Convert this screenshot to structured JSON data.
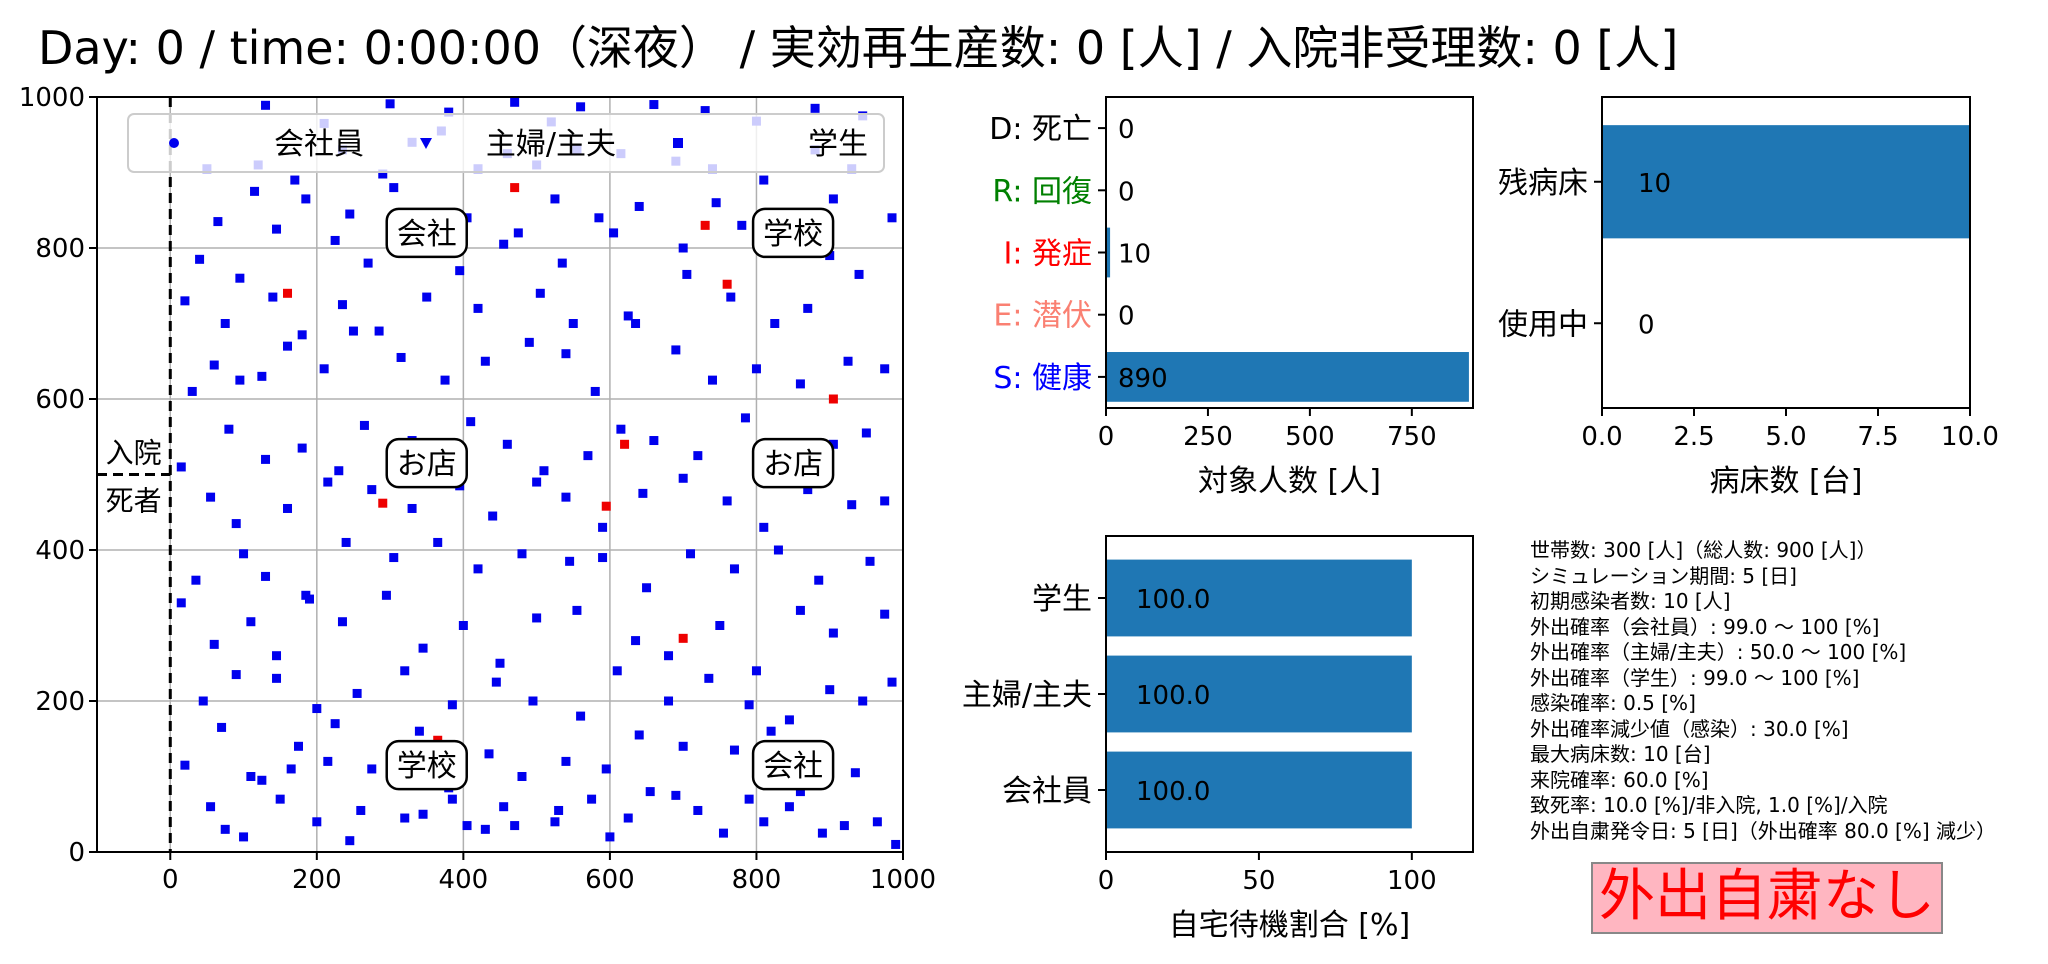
{
  "header": {
    "title": "Day: 0 / time: 0:00:00（深夜） / 実効再生産数: 0 [人] / 入院非受理数: 0 [人]"
  },
  "colors": {
    "worker": "#0000ee",
    "infected": "#ee0000",
    "bar": "#1f77b4",
    "status_bg": "#ffb6c1",
    "status_text": "#ff0000"
  },
  "map": {
    "legend": [
      {
        "label": "会社員",
        "marker": "circle"
      },
      {
        "label": "主婦/主夫",
        "marker": "triangle-down"
      },
      {
        "label": "学生",
        "marker": "square"
      }
    ],
    "places": [
      {
        "label": "会社",
        "x": 350,
        "y": 820
      },
      {
        "label": "学校",
        "x": 850,
        "y": 820
      },
      {
        "label": "お店",
        "x": 350,
        "y": 515
      },
      {
        "label": "お店",
        "x": 850,
        "y": 515
      },
      {
        "label": "学校",
        "x": 350,
        "y": 115
      },
      {
        "label": "会社",
        "x": 850,
        "y": 115
      }
    ],
    "hospital_label": "入院",
    "dead_label": "死者",
    "xlim": [
      -100,
      1000
    ],
    "ylim": [
      0,
      1000
    ],
    "xticks": [
      "0",
      "200",
      "400",
      "600",
      "800",
      "1000"
    ],
    "yticks": [
      "0",
      "200",
      "400",
      "600",
      "800",
      "1000"
    ],
    "grid": true,
    "legend_position": "top"
  },
  "chart_data": [
    {
      "type": "scatter",
      "xlim": [
        -100,
        1000
      ],
      "ylim": [
        0,
        1000
      ],
      "grid": true,
      "series": [
        {
          "name": "会社員",
          "marker": "circle",
          "color": "#0000ee",
          "points": []
        },
        {
          "name": "主婦/主夫",
          "marker": "triangle-down",
          "color": "#0000ee",
          "points": []
        },
        {
          "name": "学生",
          "marker": "square",
          "color": "#0000ee",
          "points": []
        }
      ],
      "susceptible_points": [
        [
          130,
          989
        ],
        [
          210,
          965
        ],
        [
          300,
          991
        ],
        [
          380,
          980
        ],
        [
          470,
          993
        ],
        [
          520,
          967
        ],
        [
          560,
          987
        ],
        [
          660,
          990
        ],
        [
          730,
          982
        ],
        [
          800,
          968
        ],
        [
          880,
          985
        ],
        [
          945,
          975
        ],
        [
          50,
          905
        ],
        [
          120,
          910
        ],
        [
          170,
          890
        ],
        [
          235,
          930
        ],
        [
          290,
          898
        ],
        [
          330,
          940
        ],
        [
          370,
          955
        ],
        [
          420,
          905
        ],
        [
          460,
          925
        ],
        [
          500,
          910
        ],
        [
          555,
          930
        ],
        [
          615,
          925
        ],
        [
          690,
          915
        ],
        [
          740,
          905
        ],
        [
          810,
          890
        ],
        [
          880,
          930
        ],
        [
          930,
          905
        ],
        [
          65,
          835
        ],
        [
          115,
          875
        ],
        [
          185,
          865
        ],
        [
          245,
          845
        ],
        [
          305,
          880
        ],
        [
          405,
          840
        ],
        [
          475,
          820
        ],
        [
          525,
          865
        ],
        [
          585,
          840
        ],
        [
          640,
          855
        ],
        [
          745,
          860
        ],
        [
          820,
          845
        ],
        [
          905,
          865
        ],
        [
          985,
          840
        ],
        [
          40,
          785
        ],
        [
          95,
          760
        ],
        [
          145,
          825
        ],
        [
          225,
          810
        ],
        [
          270,
          780
        ],
        [
          335,
          795
        ],
        [
          395,
          770
        ],
        [
          455,
          805
        ],
        [
          535,
          780
        ],
        [
          605,
          820
        ],
        [
          700,
          800
        ],
        [
          780,
          830
        ],
        [
          900,
          790
        ],
        [
          20,
          730
        ],
        [
          75,
          700
        ],
        [
          140,
          735
        ],
        [
          180,
          685
        ],
        [
          235,
          725
        ],
        [
          285,
          690
        ],
        [
          350,
          735
        ],
        [
          420,
          720
        ],
        [
          505,
          740
        ],
        [
          550,
          700
        ],
        [
          625,
          710
        ],
        [
          705,
          765
        ],
        [
          765,
          735
        ],
        [
          825,
          700
        ],
        [
          870,
          720
        ],
        [
          940,
          765
        ],
        [
          30,
          610
        ],
        [
          60,
          645
        ],
        [
          95,
          625
        ],
        [
          125,
          630
        ],
        [
          160,
          670
        ],
        [
          210,
          640
        ],
        [
          250,
          690
        ],
        [
          315,
          655
        ],
        [
          375,
          625
        ],
        [
          430,
          650
        ],
        [
          490,
          675
        ],
        [
          540,
          660
        ],
        [
          580,
          610
        ],
        [
          635,
          700
        ],
        [
          690,
          665
        ],
        [
          740,
          625
        ],
        [
          800,
          640
        ],
        [
          860,
          620
        ],
        [
          925,
          650
        ],
        [
          975,
          640
        ],
        [
          15,
          510
        ],
        [
          80,
          560
        ],
        [
          130,
          520
        ],
        [
          180,
          535
        ],
        [
          230,
          505
        ],
        [
          265,
          565
        ],
        [
          330,
          545
        ],
        [
          410,
          570
        ],
        [
          460,
          540
        ],
        [
          510,
          505
        ],
        [
          570,
          525
        ],
        [
          615,
          560
        ],
        [
          660,
          545
        ],
        [
          720,
          525
        ],
        [
          785,
          575
        ],
        [
          840,
          515
        ],
        [
          905,
          540
        ],
        [
          950,
          555
        ],
        [
          55,
          470
        ],
        [
          90,
          435
        ],
        [
          160,
          455
        ],
        [
          215,
          490
        ],
        [
          275,
          480
        ],
        [
          330,
          455
        ],
        [
          395,
          485
        ],
        [
          440,
          445
        ],
        [
          500,
          490
        ],
        [
          540,
          470
        ],
        [
          590,
          430
        ],
        [
          645,
          475
        ],
        [
          700,
          495
        ],
        [
          760,
          465
        ],
        [
          810,
          430
        ],
        [
          870,
          480
        ],
        [
          930,
          460
        ],
        [
          975,
          465
        ],
        [
          35,
          360
        ],
        [
          100,
          395
        ],
        [
          130,
          365
        ],
        [
          185,
          340
        ],
        [
          240,
          410
        ],
        [
          305,
          390
        ],
        [
          365,
          410
        ],
        [
          420,
          375
        ],
        [
          480,
          395
        ],
        [
          545,
          385
        ],
        [
          590,
          390
        ],
        [
          650,
          350
        ],
        [
          710,
          395
        ],
        [
          770,
          375
        ],
        [
          830,
          400
        ],
        [
          885,
          360
        ],
        [
          955,
          385
        ],
        [
          15,
          330
        ],
        [
          60,
          275
        ],
        [
          110,
          305
        ],
        [
          145,
          260
        ],
        [
          190,
          335
        ],
        [
          235,
          305
        ],
        [
          295,
          340
        ],
        [
          345,
          270
        ],
        [
          400,
          300
        ],
        [
          450,
          250
        ],
        [
          500,
          310
        ],
        [
          555,
          320
        ],
        [
          635,
          280
        ],
        [
          680,
          260
        ],
        [
          750,
          300
        ],
        [
          800,
          240
        ],
        [
          860,
          320
        ],
        [
          905,
          290
        ],
        [
          975,
          315
        ],
        [
          45,
          200
        ],
        [
          90,
          235
        ],
        [
          145,
          230
        ],
        [
          200,
          190
        ],
        [
          255,
          210
        ],
        [
          320,
          240
        ],
        [
          385,
          195
        ],
        [
          445,
          225
        ],
        [
          495,
          200
        ],
        [
          560,
          180
        ],
        [
          610,
          240
        ],
        [
          680,
          200
        ],
        [
          735,
          230
        ],
        [
          790,
          195
        ],
        [
          845,
          175
        ],
        [
          900,
          215
        ],
        [
          945,
          200
        ],
        [
          985,
          225
        ],
        [
          20,
          115
        ],
        [
          70,
          165
        ],
        [
          110,
          100
        ],
        [
          175,
          140
        ],
        [
          225,
          170
        ],
        [
          275,
          110
        ],
        [
          340,
          160
        ],
        [
          380,
          85
        ],
        [
          435,
          130
        ],
        [
          480,
          100
        ],
        [
          540,
          120
        ],
        [
          595,
          110
        ],
        [
          640,
          155
        ],
        [
          700,
          140
        ],
        [
          770,
          135
        ],
        [
          820,
          160
        ],
        [
          875,
          125
        ],
        [
          935,
          105
        ],
        [
          55,
          60
        ],
        [
          100,
          20
        ],
        [
          150,
          70
        ],
        [
          200,
          40
        ],
        [
          260,
          55
        ],
        [
          320,
          45
        ],
        [
          385,
          70
        ],
        [
          430,
          30
        ],
        [
          470,
          35
        ],
        [
          530,
          55
        ],
        [
          600,
          20
        ],
        [
          655,
          80
        ],
        [
          720,
          55
        ],
        [
          790,
          70
        ],
        [
          845,
          60
        ],
        [
          890,
          25
        ],
        [
          965,
          40
        ],
        [
          990,
          10
        ],
        [
          75,
          30
        ],
        [
          125,
          95
        ],
        [
          165,
          110
        ],
        [
          215,
          120
        ],
        [
          245,
          15
        ],
        [
          345,
          50
        ],
        [
          405,
          35
        ],
        [
          455,
          60
        ],
        [
          525,
          40
        ],
        [
          575,
          70
        ],
        [
          625,
          45
        ],
        [
          690,
          75
        ],
        [
          755,
          25
        ],
        [
          810,
          40
        ],
        [
          860,
          80
        ],
        [
          920,
          35
        ]
      ],
      "infected_points": [
        [
          730,
          830
        ],
        [
          760,
          752
        ],
        [
          290,
          462
        ],
        [
          595,
          458
        ],
        [
          700,
          283
        ],
        [
          365,
          148
        ],
        [
          620,
          540
        ],
        [
          470,
          880
        ],
        [
          160,
          740
        ],
        [
          905,
          600
        ]
      ]
    },
    {
      "type": "bar",
      "orientation": "horizontal",
      "categories": [
        "D: 死亡",
        "R: 回復",
        "I: 発症",
        "E: 潜伏",
        "S: 健康"
      ],
      "category_colors": [
        "#000000",
        "#008000",
        "#ff0000",
        "#fa8072",
        "#0000ff"
      ],
      "values": [
        0,
        0,
        10,
        0,
        890
      ],
      "xlabel": "対象人数 [人]",
      "xlim": [
        0,
        900
      ],
      "xticks": [
        0,
        250,
        500,
        750
      ]
    },
    {
      "type": "bar",
      "orientation": "horizontal",
      "categories": [
        "残病床",
        "使用中"
      ],
      "values": [
        10,
        0
      ],
      "xlabel": "病床数 [台]",
      "xlim": [
        0,
        10
      ],
      "xticks": [
        "0.0",
        "2.5",
        "5.0",
        "7.5",
        "10.0"
      ]
    },
    {
      "type": "bar",
      "orientation": "horizontal",
      "categories": [
        "学生",
        "主婦/主夫",
        "会社員"
      ],
      "values": [
        100.0,
        100.0,
        100.0
      ],
      "value_labels": [
        "100.0",
        "100.0",
        "100.0"
      ],
      "xlabel": "自宅待機割合 [%]",
      "xlim": [
        0,
        120
      ],
      "xticks": [
        0,
        50,
        100
      ]
    }
  ],
  "params": [
    "世帯数: 300 [人]（総人数: 900 [人]）",
    "シミュレーション期間: 5 [日]",
    "初期感染者数: 10 [人]",
    "外出確率（会社員）: 99.0 〜 100 [%]",
    "外出確率（主婦/主夫）: 50.0 〜 100 [%]",
    "外出確率（学生）: 99.0 〜 100 [%]",
    "感染確率: 0.5 [%]",
    "外出確率減少値（感染）: 30.0 [%]",
    "最大病床数: 10 [台]",
    "来院確率: 60.0 [%]",
    "致死率: 10.0 [%]/非入院, 1.0 [%]/入院",
    "外出自粛発令日: 5 [日]（外出確率 80.0 [%] 減少）"
  ],
  "status": {
    "label": "外出自粛なし"
  }
}
